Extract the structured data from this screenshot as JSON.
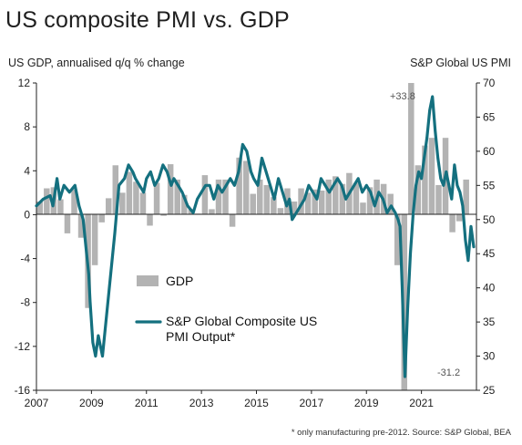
{
  "title": "US composite PMI vs. GDP",
  "left_axis_title": "US GDP, annualised q/q % change",
  "right_axis_title": "S&P Global US PMI",
  "footnote": "* only manufacturing pre-2012. Source: S&P Global, BEA",
  "colors": {
    "bars": "#b3b3b3",
    "line": "#14707f",
    "axis": "#222222"
  },
  "chart_data": {
    "type": "bar+line",
    "title": "US composite PMI vs. GDP",
    "x_ticks": [
      "2007",
      "2009",
      "2011",
      "2013",
      "2015",
      "2017",
      "2019",
      "2021"
    ],
    "x_range": [
      2007.0,
      2023.0
    ],
    "left_axis": {
      "label": "US GDP, annualised q/q % change",
      "range": [
        -16,
        12
      ],
      "ticks": [
        "12",
        "8",
        "4",
        "0",
        "-4",
        "-8",
        "-12",
        "-16"
      ]
    },
    "right_axis": {
      "label": "S&P Global US PMI",
      "range": [
        25,
        70
      ],
      "ticks": [
        "70",
        "65",
        "60",
        "55",
        "50",
        "45",
        "40",
        "35",
        "30",
        "25"
      ]
    },
    "legend": [
      "GDP",
      "S&P Global Composite US\nPMI Output*"
    ],
    "annotations": [
      "+33.8",
      "-31.2"
    ],
    "gdp_series": {
      "name": "GDP",
      "x": [
        2007.125,
        2007.375,
        2007.625,
        2007.875,
        2008.125,
        2008.375,
        2008.625,
        2008.875,
        2009.125,
        2009.375,
        2009.625,
        2009.875,
        2010.125,
        2010.375,
        2010.625,
        2010.875,
        2011.125,
        2011.375,
        2011.625,
        2011.875,
        2012.125,
        2012.375,
        2012.625,
        2012.875,
        2013.125,
        2013.375,
        2013.625,
        2013.875,
        2014.125,
        2014.375,
        2014.625,
        2014.875,
        2015.125,
        2015.375,
        2015.625,
        2015.875,
        2016.125,
        2016.375,
        2016.625,
        2016.875,
        2017.125,
        2017.375,
        2017.625,
        2017.875,
        2018.125,
        2018.375,
        2018.625,
        2018.875,
        2019.125,
        2019.375,
        2019.625,
        2019.875,
        2020.125,
        2020.375,
        2020.625,
        2020.875,
        2021.125,
        2021.375,
        2021.625,
        2021.875,
        2022.125,
        2022.375,
        2022.625
      ],
      "values": [
        1.2,
        2.4,
        2.5,
        1.4,
        -1.7,
        2.3,
        -2.1,
        -8.5,
        -4.6,
        -0.7,
        1.5,
        4.5,
        2.0,
        3.9,
        3.0,
        2.0,
        -1.0,
        2.9,
        -0.1,
        4.6,
        3.2,
        1.8,
        0.5,
        0.1,
        3.6,
        0.5,
        3.2,
        3.2,
        -1.1,
        5.2,
        4.9,
        1.9,
        3.2,
        2.7,
        1.6,
        0.6,
        2.4,
        1.2,
        2.4,
        2.0,
        2.3,
        2.2,
        3.2,
        3.5,
        2.8,
        3.8,
        2.9,
        1.1,
        2.5,
        3.2,
        2.8,
        1.9,
        -4.6,
        -31.2,
        33.8,
        4.5,
        6.3,
        7.0,
        2.7,
        7.0,
        -1.6,
        -0.6,
        3.2
      ]
    },
    "pmi_series": {
      "name": "S&P Global Composite US PMI Output*",
      "x": [
        2007.0,
        2007.25,
        2007.5,
        2007.6,
        2007.75,
        2007.85,
        2008.0,
        2008.2,
        2008.4,
        2008.55,
        2008.7,
        2008.8,
        2008.9,
        2008.95,
        2009.05,
        2009.15,
        2009.25,
        2009.4,
        2009.55,
        2009.7,
        2009.85,
        2010.0,
        2010.2,
        2010.35,
        2010.5,
        2010.6,
        2010.75,
        2010.9,
        2011.0,
        2011.15,
        2011.3,
        2011.45,
        2011.6,
        2011.75,
        2011.9,
        2012.0,
        2012.15,
        2012.3,
        2012.5,
        2012.7,
        2012.85,
        2013.0,
        2013.15,
        2013.3,
        2013.45,
        2013.6,
        2013.75,
        2013.9,
        2014.05,
        2014.2,
        2014.35,
        2014.5,
        2014.65,
        2014.8,
        2014.9,
        2015.05,
        2015.2,
        2015.35,
        2015.5,
        2015.65,
        2015.8,
        2015.95,
        2016.1,
        2016.2,
        2016.3,
        2016.45,
        2016.6,
        2016.75,
        2016.9,
        2017.05,
        2017.2,
        2017.35,
        2017.5,
        2017.65,
        2017.8,
        2017.95,
        2018.1,
        2018.25,
        2018.4,
        2018.55,
        2018.7,
        2018.85,
        2019.0,
        2019.15,
        2019.3,
        2019.45,
        2019.6,
        2019.75,
        2019.9,
        2020.05,
        2020.15,
        2020.22,
        2020.3,
        2020.4,
        2020.5,
        2020.6,
        2020.7,
        2020.8,
        2020.9,
        2021.0,
        2021.1,
        2021.2,
        2021.3,
        2021.4,
        2021.5,
        2021.6,
        2021.7,
        2021.8,
        2021.9,
        2022.0,
        2022.1,
        2022.2,
        2022.3,
        2022.4,
        2022.5,
        2022.6,
        2022.7,
        2022.8,
        2022.9
      ],
      "values": [
        52,
        53,
        53.5,
        52,
        56,
        53,
        55,
        54,
        55,
        52,
        50,
        46,
        42,
        38,
        32,
        30,
        33,
        30,
        36,
        42,
        48,
        55,
        56,
        58,
        57,
        56,
        55,
        54,
        56,
        57,
        55,
        56,
        58,
        57,
        55,
        56,
        55,
        54,
        52,
        51,
        53,
        54,
        55,
        55,
        53,
        55,
        54,
        55,
        56,
        55,
        57,
        61,
        60,
        57,
        56,
        55,
        59,
        57,
        55,
        53,
        56,
        54,
        52,
        53,
        50,
        51,
        52,
        53,
        55,
        54,
        53,
        56,
        55,
        54,
        55,
        56,
        55,
        53,
        54,
        55,
        56,
        54,
        55,
        54,
        52,
        54,
        53,
        51,
        52,
        51,
        50,
        49,
        40,
        27,
        37,
        45,
        51,
        55,
        57,
        56,
        59,
        62,
        66,
        68,
        63,
        59,
        56,
        55,
        57,
        55,
        53,
        58,
        55,
        54,
        52,
        47,
        44,
        49,
        46
      ]
    }
  }
}
